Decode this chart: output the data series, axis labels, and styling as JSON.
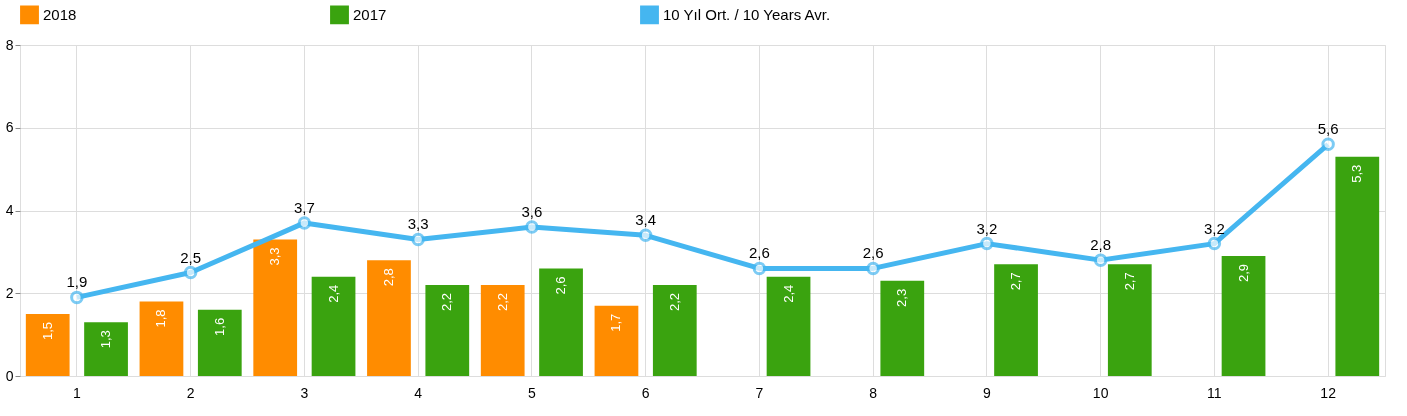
{
  "chart_data": {
    "type": "bar",
    "categories": [
      "1",
      "2",
      "3",
      "4",
      "5",
      "6",
      "7",
      "8",
      "9",
      "10",
      "11",
      "12"
    ],
    "series": [
      {
        "name": "2018",
        "color": "#ff8c00",
        "values": [
          1.5,
          1.8,
          3.3,
          2.8,
          2.2,
          1.7,
          null,
          null,
          null,
          null,
          null,
          null
        ],
        "value_labels": [
          "1,5",
          "1,8",
          "3,3",
          "2,8",
          "2,2",
          "1,7",
          null,
          null,
          null,
          null,
          null,
          null
        ]
      },
      {
        "name": "2017",
        "color": "#3aa30f",
        "values": [
          1.3,
          1.6,
          2.4,
          2.2,
          2.6,
          2.2,
          2.4,
          2.3,
          2.7,
          2.7,
          2.9,
          5.3
        ],
        "value_labels": [
          "1,3",
          "1,6",
          "2,4",
          "2,2",
          "2,6",
          "2,2",
          "2,4",
          "2,3",
          "2,7",
          "2,7",
          "2,9",
          "5,3"
        ]
      },
      {
        "name": "10 Yıl Ort. / 10 Years Avr.",
        "type": "line",
        "color": "#45b6f0",
        "marker": "circle",
        "values": [
          1.9,
          2.5,
          3.7,
          3.3,
          3.6,
          3.4,
          2.6,
          2.6,
          3.2,
          2.8,
          3.2,
          5.6
        ],
        "value_labels": [
          "1,9",
          "2,5",
          "3,7",
          "3,3",
          "3,6",
          "3,4",
          "2,6",
          "2,6",
          "3,2",
          "2,8",
          "3,2",
          "5,6"
        ]
      }
    ],
    "ylim": [
      0,
      8
    ],
    "yticks": [
      0,
      2,
      4,
      6,
      8
    ],
    "grid": true,
    "legend": "top"
  }
}
